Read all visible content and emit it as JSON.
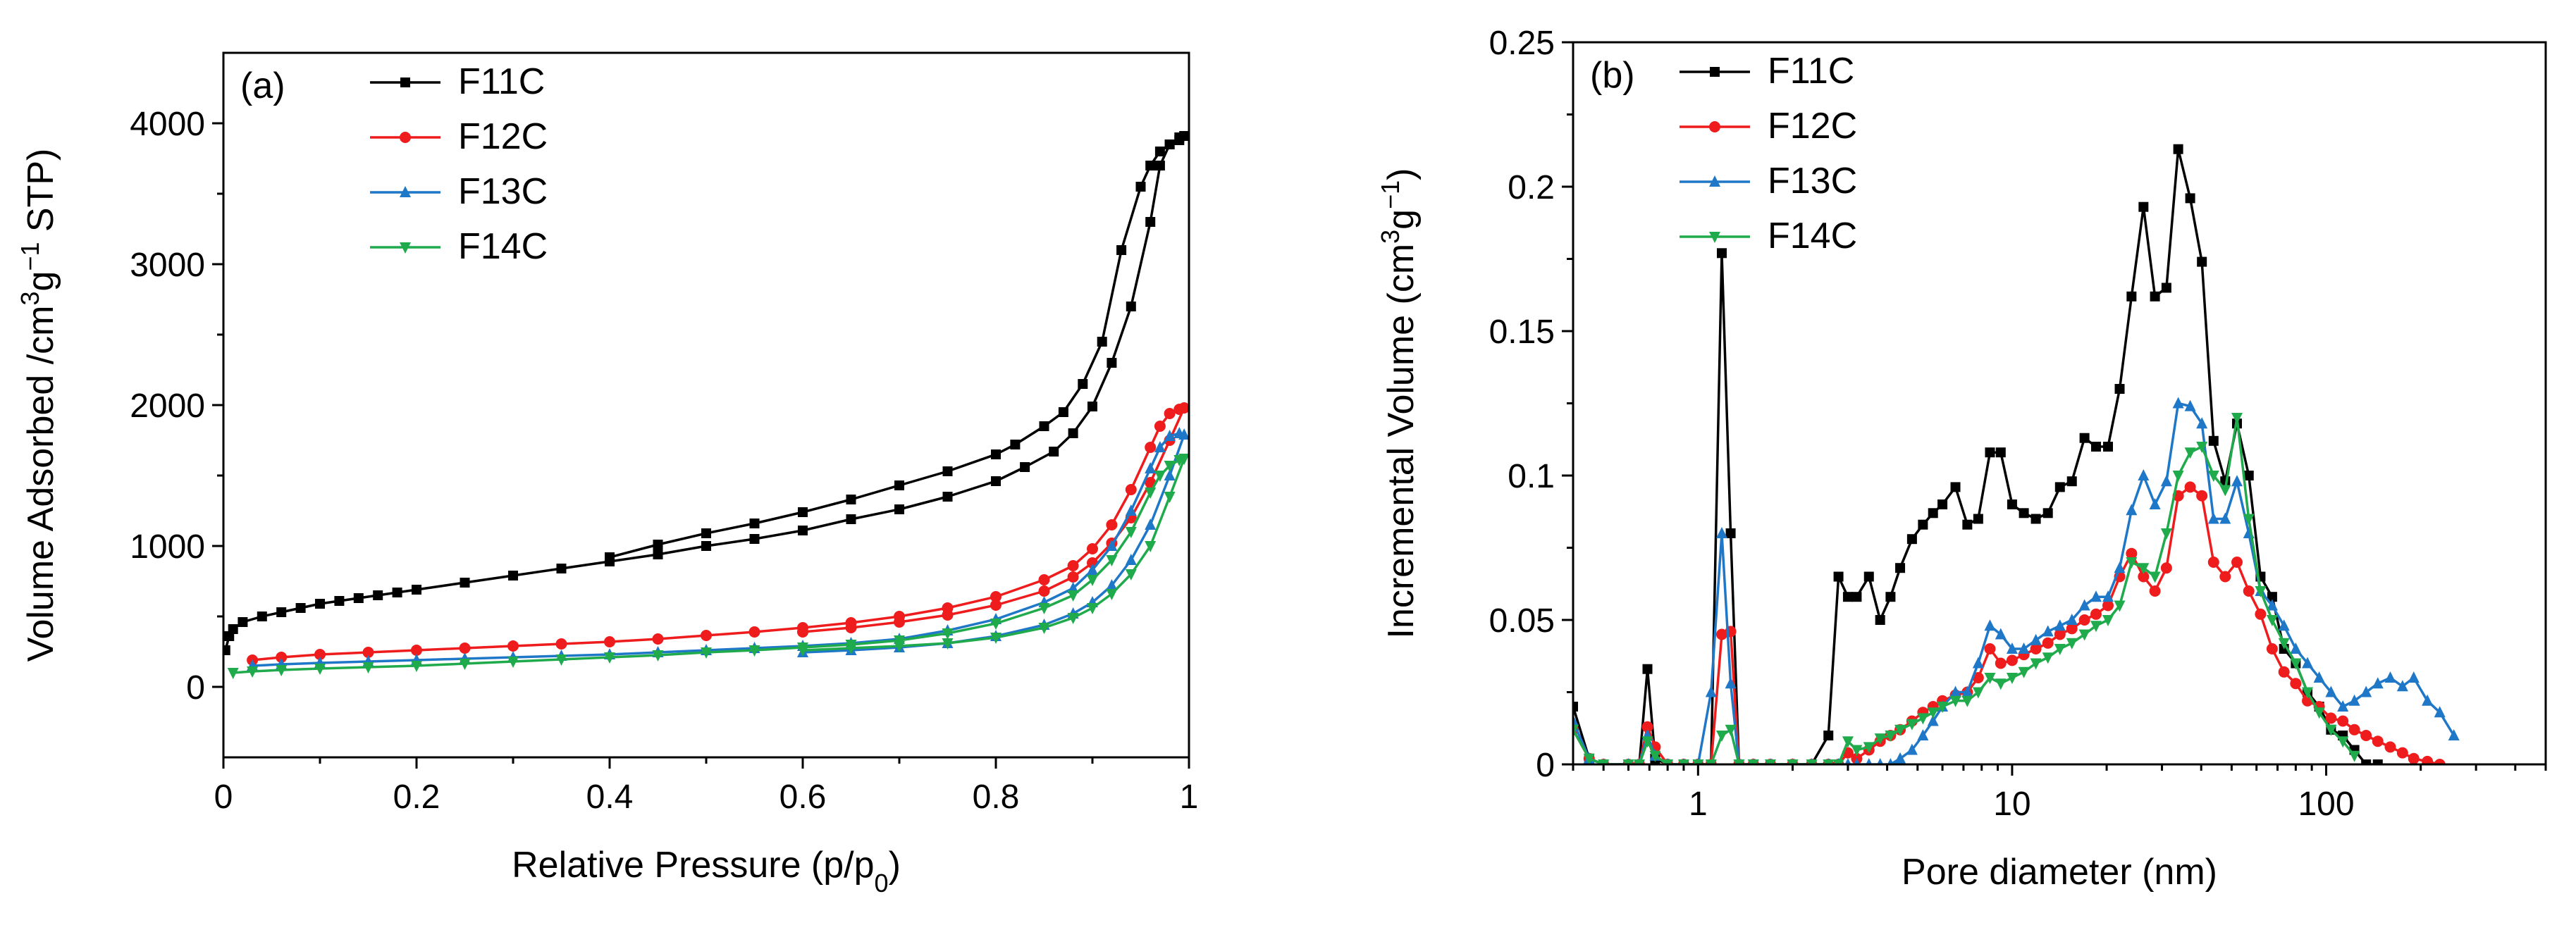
{
  "figure": {
    "panel_a_label": "(a)",
    "panel_b_label": "(b)"
  },
  "chart_data": [
    {
      "type": "line",
      "panel": "(a)",
      "title": "",
      "xlabel": "Relative Pressure (p/p0)",
      "ylabel": "Volume Adsorbed /cm3g−1 STP)",
      "xlim": [
        0,
        1
      ],
      "ylim": [
        -500,
        4500
      ],
      "xticks": [
        0,
        0.2,
        0.4,
        0.6,
        0.8,
        1
      ],
      "xtick_labels": [
        "0",
        "0.2",
        "0.4",
        "0.6",
        "0.8",
        "1"
      ],
      "yticks": [
        0,
        1000,
        2000,
        3000,
        4000
      ],
      "ytick_labels": [
        "0",
        "1000",
        "2000",
        "3000",
        "4000"
      ],
      "legend": [
        "F11C",
        "F12C",
        "F13C",
        "F14C"
      ],
      "legend_position": "top-left",
      "series": [
        {
          "name": "F11C",
          "color": "#000000",
          "marker": "square",
          "x": [
            0.002,
            0.006,
            0.01,
            0.02,
            0.04,
            0.06,
            0.08,
            0.1,
            0.12,
            0.14,
            0.16,
            0.18,
            0.2,
            0.25,
            0.3,
            0.35,
            0.4,
            0.45,
            0.5,
            0.55,
            0.6,
            0.65,
            0.7,
            0.75,
            0.8,
            0.83,
            0.86,
            0.88,
            0.9,
            0.92,
            0.94,
            0.96,
            0.97,
            0.98,
            0.99,
            0.995,
            0.99,
            0.98,
            0.97,
            0.96,
            0.95,
            0.93,
            0.91,
            0.89,
            0.87,
            0.85,
            0.82,
            0.8,
            0.75,
            0.7,
            0.65,
            0.6,
            0.55,
            0.5,
            0.45,
            0.4
          ],
          "y": [
            260,
            360,
            410,
            460,
            500,
            530,
            560,
            590,
            610,
            630,
            650,
            670,
            690,
            740,
            790,
            840,
            890,
            940,
            1000,
            1050,
            1110,
            1190,
            1260,
            1350,
            1460,
            1560,
            1670,
            1800,
            1990,
            2300,
            2700,
            3300,
            3700,
            3850,
            3900,
            3910,
            3880,
            3850,
            3800,
            3700,
            3550,
            3100,
            2450,
            2150,
            1950,
            1850,
            1720,
            1650,
            1530,
            1430,
            1330,
            1240,
            1160,
            1090,
            1010,
            920
          ]
        },
        {
          "name": "F12C",
          "color": "#ee1c1c",
          "marker": "circle",
          "x": [
            0.03,
            0.06,
            0.1,
            0.15,
            0.2,
            0.25,
            0.3,
            0.35,
            0.4,
            0.45,
            0.5,
            0.55,
            0.6,
            0.65,
            0.7,
            0.75,
            0.8,
            0.85,
            0.88,
            0.9,
            0.92,
            0.94,
            0.96,
            0.97,
            0.98,
            0.99,
            0.995,
            0.98,
            0.96,
            0.94,
            0.92,
            0.9,
            0.88,
            0.85,
            0.8,
            0.75,
            0.7,
            0.65,
            0.6
          ],
          "y": [
            190,
            210,
            230,
            245,
            260,
            275,
            290,
            305,
            320,
            340,
            365,
            390,
            420,
            455,
            500,
            560,
            640,
            760,
            860,
            980,
            1150,
            1400,
            1700,
            1850,
            1940,
            1970,
            1980,
            1750,
            1450,
            1200,
            1020,
            880,
            780,
            680,
            580,
            510,
            460,
            420,
            390
          ]
        },
        {
          "name": "F13C",
          "color": "#1f77c8",
          "marker": "triangle",
          "x": [
            0.03,
            0.06,
            0.1,
            0.15,
            0.2,
            0.25,
            0.3,
            0.35,
            0.4,
            0.45,
            0.5,
            0.55,
            0.6,
            0.65,
            0.7,
            0.75,
            0.8,
            0.85,
            0.88,
            0.9,
            0.92,
            0.94,
            0.96,
            0.97,
            0.98,
            0.99,
            0.995,
            0.98,
            0.96,
            0.94,
            0.92,
            0.9,
            0.88,
            0.85,
            0.8,
            0.75,
            0.7,
            0.65,
            0.6
          ],
          "y": [
            150,
            160,
            170,
            180,
            190,
            200,
            210,
            220,
            230,
            245,
            260,
            275,
            290,
            310,
            340,
            400,
            480,
            600,
            700,
            830,
            1000,
            1250,
            1550,
            1700,
            1780,
            1800,
            1790,
            1500,
            1150,
            900,
            720,
            600,
            520,
            440,
            360,
            310,
            280,
            260,
            245
          ]
        },
        {
          "name": "F14C",
          "color": "#1faa4b",
          "marker": "triangle-down",
          "x": [
            0.01,
            0.03,
            0.06,
            0.1,
            0.15,
            0.2,
            0.25,
            0.3,
            0.35,
            0.4,
            0.45,
            0.5,
            0.55,
            0.6,
            0.65,
            0.7,
            0.75,
            0.8,
            0.85,
            0.88,
            0.9,
            0.92,
            0.94,
            0.96,
            0.97,
            0.98,
            0.99,
            0.995,
            0.98,
            0.96,
            0.94,
            0.92,
            0.9,
            0.88,
            0.85,
            0.8,
            0.75,
            0.7,
            0.65,
            0.6
          ],
          "y": [
            100,
            110,
            120,
            130,
            140,
            150,
            165,
            180,
            195,
            210,
            225,
            245,
            260,
            280,
            300,
            330,
            380,
            450,
            560,
            650,
            760,
            900,
            1100,
            1380,
            1500,
            1570,
            1610,
            1620,
            1350,
            1000,
            800,
            660,
            560,
            490,
            420,
            350,
            310,
            290,
            275,
            260
          ]
        }
      ]
    },
    {
      "type": "line",
      "panel": "(b)",
      "title": "",
      "xlabel": "Pore diameter (nm)",
      "ylabel": "Incremental Volume (cm3g−1)",
      "xscale": "log",
      "xlim": [
        0.4,
        500
      ],
      "ylim": [
        0,
        0.25
      ],
      "xticks": [
        1,
        10,
        100
      ],
      "xtick_labels": [
        "1",
        "10",
        "100"
      ],
      "yticks": [
        0,
        0.05,
        0.1,
        0.15,
        0.2,
        0.25
      ],
      "ytick_labels": [
        "0",
        "0.05",
        "0.1",
        "0.15",
        "0.2",
        "0.25"
      ],
      "legend": [
        "F11C",
        "F12C",
        "F13C",
        "F14C"
      ],
      "legend_position": "top-left",
      "series": [
        {
          "name": "F11C",
          "color": "#000000",
          "marker": "square",
          "x": [
            0.4,
            0.45,
            0.5,
            0.6,
            0.65,
            0.69,
            0.73,
            0.8,
            0.9,
            1.0,
            1.1,
            1.19,
            1.27,
            1.35,
            1.5,
            1.7,
            2.0,
            2.3,
            2.6,
            2.8,
            3.0,
            3.2,
            3.5,
            3.8,
            4.1,
            4.4,
            4.8,
            5.2,
            5.6,
            6.0,
            6.6,
            7.2,
            7.8,
            8.5,
            9.2,
            10.0,
            10.9,
            11.9,
            13.0,
            14.2,
            15.5,
            17.0,
            18.5,
            20.2,
            22.0,
            24.0,
            26.2,
            28.5,
            31.0,
            33.8,
            36.9,
            40.2,
            43.8,
            47.7,
            52.0,
            56.7,
            61.8,
            67.3,
            73.4,
            80.0,
            87.2,
            95.0,
            103.6,
            113.0,
            123.0,
            134.0,
            146.0
          ],
          "y": [
            0.02,
            0.002,
            0.0,
            0.0,
            0.0,
            0.033,
            0.002,
            0.0,
            0.0,
            0.0,
            0.0,
            0.177,
            0.08,
            0.0,
            0.0,
            0.0,
            0.0,
            0.0,
            0.01,
            0.065,
            0.058,
            0.058,
            0.065,
            0.05,
            0.058,
            0.068,
            0.078,
            0.083,
            0.087,
            0.09,
            0.096,
            0.083,
            0.085,
            0.108,
            0.108,
            0.09,
            0.087,
            0.085,
            0.087,
            0.096,
            0.098,
            0.113,
            0.11,
            0.11,
            0.13,
            0.162,
            0.193,
            0.162,
            0.165,
            0.213,
            0.196,
            0.174,
            0.112,
            0.098,
            0.118,
            0.1,
            0.065,
            0.058,
            0.04,
            0.035,
            0.025,
            0.02,
            0.012,
            0.01,
            0.005,
            0.0,
            0.0
          ]
        },
        {
          "name": "F12C",
          "color": "#ee1c1c",
          "marker": "circle",
          "x": [
            0.4,
            0.45,
            0.5,
            0.6,
            0.65,
            0.69,
            0.73,
            0.8,
            0.9,
            1.0,
            1.1,
            1.19,
            1.27,
            1.35,
            1.5,
            1.7,
            2.0,
            2.3,
            2.6,
            2.8,
            3.0,
            3.2,
            3.5,
            3.8,
            4.1,
            4.4,
            4.8,
            5.2,
            5.6,
            6.0,
            6.6,
            7.2,
            7.8,
            8.5,
            9.2,
            10.0,
            10.9,
            11.9,
            13.0,
            14.2,
            15.5,
            17.0,
            18.5,
            20.2,
            22.0,
            24.0,
            26.2,
            28.5,
            31.0,
            33.8,
            36.9,
            40.2,
            43.8,
            47.7,
            52.0,
            56.7,
            61.8,
            67.3,
            73.4,
            80.0,
            87.2,
            95.0,
            103.6,
            113.0,
            123.0,
            134.0,
            146.0,
            160.0,
            175.0,
            190.0,
            210.0,
            230.0
          ],
          "y": [
            0.012,
            0.002,
            0.0,
            0.0,
            0.0,
            0.013,
            0.006,
            0.0,
            0.0,
            0.0,
            0.0,
            0.045,
            0.046,
            0.0,
            0.0,
            0.0,
            0.0,
            0.0,
            0.0,
            0.0,
            0.004,
            0.002,
            0.005,
            0.008,
            0.01,
            0.012,
            0.015,
            0.018,
            0.02,
            0.022,
            0.024,
            0.025,
            0.03,
            0.04,
            0.035,
            0.036,
            0.038,
            0.04,
            0.042,
            0.045,
            0.047,
            0.05,
            0.052,
            0.055,
            0.065,
            0.073,
            0.065,
            0.06,
            0.068,
            0.093,
            0.096,
            0.093,
            0.07,
            0.065,
            0.07,
            0.06,
            0.052,
            0.04,
            0.032,
            0.028,
            0.022,
            0.02,
            0.016,
            0.015,
            0.012,
            0.01,
            0.008,
            0.006,
            0.004,
            0.002,
            0.001,
            0.0
          ]
        },
        {
          "name": "F13C",
          "color": "#1f77c8",
          "marker": "triangle",
          "x": [
            0.4,
            0.45,
            0.5,
            0.6,
            0.65,
            0.69,
            0.73,
            0.8,
            0.9,
            1.0,
            1.1,
            1.19,
            1.27,
            1.35,
            1.5,
            1.7,
            2.0,
            2.3,
            2.6,
            2.8,
            3.0,
            3.2,
            3.5,
            3.8,
            4.1,
            4.4,
            4.8,
            5.2,
            5.6,
            6.0,
            6.6,
            7.2,
            7.8,
            8.5,
            9.2,
            10.0,
            10.9,
            11.9,
            13.0,
            14.2,
            15.5,
            17.0,
            18.5,
            20.2,
            22.0,
            24.0,
            26.2,
            28.5,
            31.0,
            33.8,
            36.9,
            40.2,
            43.8,
            47.7,
            52.0,
            56.7,
            61.8,
            67.3,
            73.4,
            80.0,
            87.2,
            95.0,
            103.6,
            113.0,
            123.0,
            134.0,
            146.0,
            160.0,
            175.0,
            190.0,
            210.0,
            230.0,
            255.0
          ],
          "y": [
            0.015,
            0.002,
            0.0,
            0.0,
            0.0,
            0.01,
            0.003,
            0.0,
            0.0,
            0.0,
            0.025,
            0.08,
            0.028,
            0.0,
            0.0,
            0.0,
            0.0,
            0.0,
            0.0,
            0.0,
            0.0,
            0.0,
            0.0,
            0.0,
            0.0,
            0.002,
            0.005,
            0.01,
            0.015,
            0.02,
            0.025,
            0.025,
            0.035,
            0.048,
            0.045,
            0.04,
            0.04,
            0.043,
            0.046,
            0.048,
            0.05,
            0.055,
            0.058,
            0.058,
            0.068,
            0.088,
            0.1,
            0.09,
            0.098,
            0.125,
            0.124,
            0.118,
            0.085,
            0.085,
            0.098,
            0.08,
            0.06,
            0.055,
            0.048,
            0.04,
            0.035,
            0.03,
            0.025,
            0.02,
            0.022,
            0.025,
            0.028,
            0.03,
            0.027,
            0.03,
            0.022,
            0.018,
            0.01
          ]
        },
        {
          "name": "F14C",
          "color": "#1faa4b",
          "marker": "triangle-down",
          "x": [
            0.4,
            0.45,
            0.5,
            0.6,
            0.65,
            0.69,
            0.73,
            0.8,
            0.9,
            1.0,
            1.1,
            1.19,
            1.27,
            1.35,
            1.5,
            1.7,
            2.0,
            2.3,
            2.6,
            2.8,
            3.0,
            3.2,
            3.5,
            3.8,
            4.1,
            4.4,
            4.8,
            5.2,
            5.6,
            6.0,
            6.6,
            7.2,
            7.8,
            8.5,
            9.2,
            10.0,
            10.9,
            11.9,
            13.0,
            14.2,
            15.5,
            17.0,
            18.5,
            20.2,
            22.0,
            24.0,
            26.2,
            28.5,
            31.0,
            33.8,
            36.9,
            40.2,
            43.8,
            47.7,
            52.0,
            56.7,
            61.8,
            67.3,
            73.4,
            80.0,
            87.2,
            95.0,
            103.6,
            113.0,
            123.0
          ],
          "y": [
            0.012,
            0.002,
            0.0,
            0.0,
            0.0,
            0.008,
            0.003,
            0.0,
            0.0,
            0.0,
            0.0,
            0.01,
            0.012,
            0.0,
            0.0,
            0.0,
            0.0,
            0.0,
            0.0,
            0.0,
            0.008,
            0.005,
            0.006,
            0.009,
            0.01,
            0.012,
            0.014,
            0.016,
            0.018,
            0.02,
            0.022,
            0.022,
            0.025,
            0.03,
            0.028,
            0.03,
            0.032,
            0.035,
            0.037,
            0.04,
            0.042,
            0.045,
            0.048,
            0.05,
            0.055,
            0.07,
            0.068,
            0.065,
            0.08,
            0.1,
            0.108,
            0.11,
            0.1,
            0.095,
            0.12,
            0.085,
            0.06,
            0.05,
            0.042,
            0.035,
            0.025,
            0.018,
            0.012,
            0.008,
            0.003
          ]
        }
      ]
    }
  ]
}
